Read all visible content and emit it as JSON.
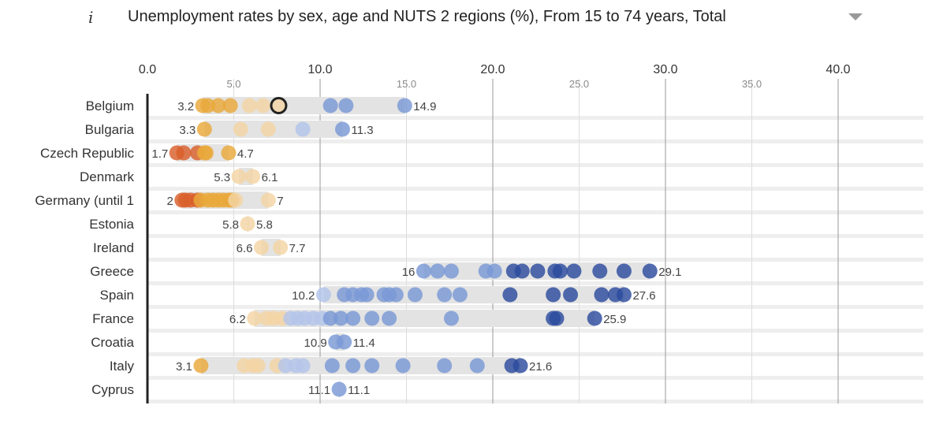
{
  "header": {
    "info_symbol": "i",
    "title": "Unemployment rates by sex, age and NUTS 2 regions (%), From 15 to 74 years, Total"
  },
  "colors": {
    "low": "#d95f2b",
    "mid_low": "#e9a83a",
    "light_orange": "#f4d4a4",
    "light_blue": "#b3c4ea",
    "mid_blue": "#7a98d6",
    "dark_blue": "#2c4c9e",
    "band": "#e3e3e3",
    "axis": "#222222"
  },
  "chart_data": {
    "type": "scatter",
    "title": "Unemployment rates by sex, age and NUTS 2 regions (%), From 15 to 74 years, Total",
    "xlim": [
      0,
      40
    ],
    "major_ticks": [
      "0.0",
      "10.0",
      "20.0",
      "30.0",
      "40.0"
    ],
    "minor_ticks": [
      "5.0",
      "15.0",
      "25.0",
      "35.0"
    ],
    "grid": true,
    "highlighted": {
      "country": "Belgium",
      "value": 7.6
    },
    "countries": [
      {
        "name": "Belgium",
        "min_label": "3.2",
        "max_label": "14.9",
        "values": [
          3.2,
          3.5,
          4.1,
          4.8,
          5.9,
          6.7,
          7.6,
          10.6,
          11.5,
          14.9
        ]
      },
      {
        "name": "Bulgaria",
        "min_label": "3.3",
        "max_label": "11.3",
        "values": [
          3.3,
          5.4,
          7.0,
          9.0,
          11.3
        ]
      },
      {
        "name": "Czech Republic",
        "min_label": "1.7",
        "max_label": "4.7",
        "values": [
          1.7,
          2.1,
          2.9,
          3.3,
          3.4,
          4.7
        ]
      },
      {
        "name": "Denmark",
        "min_label": "5.3",
        "max_label": "6.1",
        "values": [
          5.3,
          6.1
        ]
      },
      {
        "name": "Germany (until 1",
        "min_label": "2",
        "max_label": "7",
        "values": [
          2.0,
          2.2,
          2.5,
          2.9,
          3.1,
          3.5,
          3.8,
          4.1,
          4.4,
          4.7,
          4.9,
          5.1,
          7.0
        ]
      },
      {
        "name": "Estonia",
        "min_label": "5.8",
        "max_label": "5.8",
        "values": [
          5.8
        ]
      },
      {
        "name": "Ireland",
        "min_label": "6.6",
        "max_label": "7.7",
        "values": [
          6.6,
          7.7
        ]
      },
      {
        "name": "Greece",
        "min_label": "16",
        "max_label": "29.1",
        "values": [
          16.0,
          16.8,
          17.6,
          19.6,
          20.1,
          21.2,
          21.7,
          22.6,
          23.6,
          23.9,
          24.7,
          26.2,
          27.6,
          29.1
        ]
      },
      {
        "name": "Spain",
        "min_label": "10.2",
        "max_label": "27.6",
        "values": [
          10.2,
          11.4,
          11.9,
          12.4,
          12.7,
          13.7,
          14.0,
          14.4,
          15.5,
          17.2,
          18.1,
          21.0,
          23.5,
          24.5,
          26.3,
          27.1,
          27.6
        ]
      },
      {
        "name": "France",
        "min_label": "6.2",
        "max_label": "25.9",
        "values": [
          6.2,
          6.9,
          7.3,
          7.8,
          8.3,
          8.7,
          9.1,
          9.6,
          10.1,
          10.6,
          11.2,
          11.9,
          13.0,
          14.0,
          17.6,
          23.5,
          23.7,
          25.9
        ]
      },
      {
        "name": "Croatia",
        "min_label": "10.9",
        "max_label": "11.4",
        "values": [
          10.9,
          11.4
        ]
      },
      {
        "name": "Italy",
        "min_label": "3.1",
        "max_label": "21.6",
        "values": [
          3.1,
          5.6,
          6.1,
          6.4,
          7.5,
          8.0,
          8.6,
          9.0,
          10.7,
          11.9,
          13.0,
          14.8,
          17.2,
          19.1,
          21.1,
          21.6
        ]
      },
      {
        "name": "Cyprus",
        "min_label": "11.1",
        "max_label": "11.1",
        "values": [
          11.1
        ]
      }
    ]
  }
}
